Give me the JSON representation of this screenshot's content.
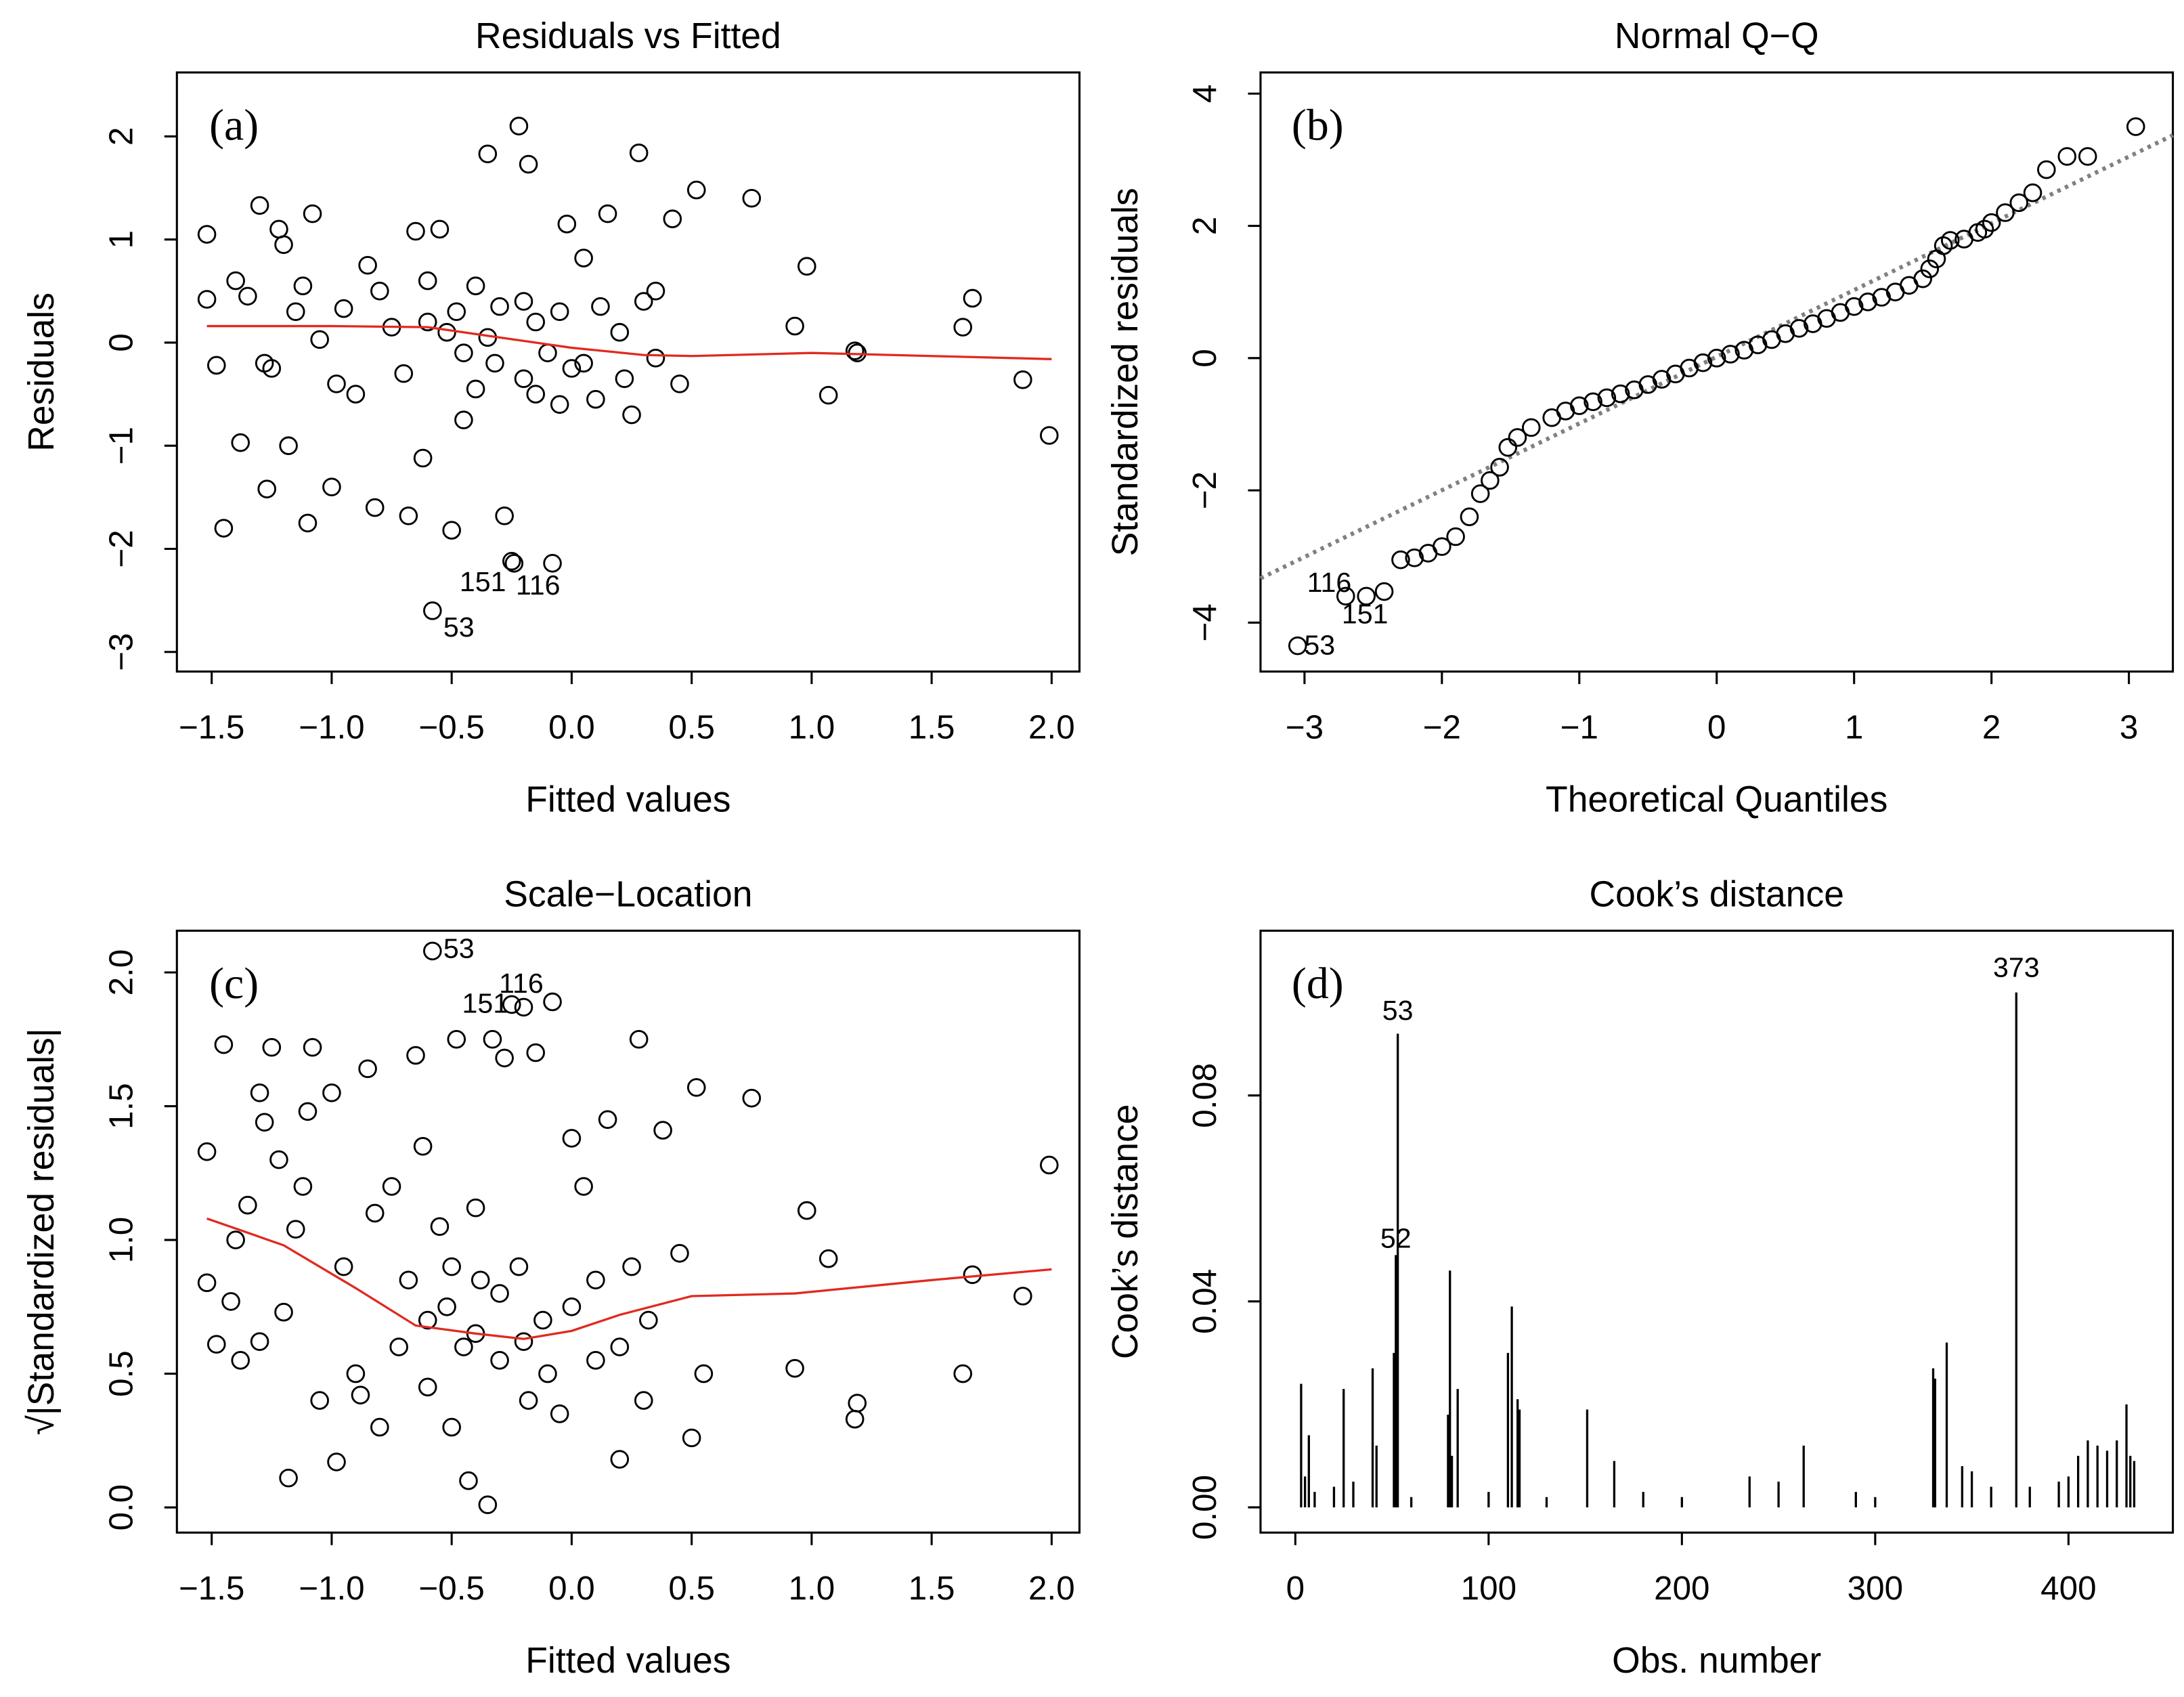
{
  "chart_data": [
    {
      "type": "scatter",
      "title": "Residuals vs Fitted",
      "panel_label": "(a)",
      "x_label": "Fitted values",
      "y_label": "Residuals",
      "xlim": [
        -1.645,
        2.116
      ],
      "ylim": [
        -3.19,
        2.62
      ],
      "xticks": [
        {
          "value": -1.5,
          "label": "−1.5"
        },
        {
          "value": -1,
          "label": "−1.0"
        },
        {
          "value": -0.5,
          "label": "−0.5"
        },
        {
          "value": 0,
          "label": "0.0"
        },
        0.5,
        {
          "value": 1,
          "label": "1.0"
        },
        1.5,
        {
          "value": 2,
          "label": "2.0"
        }
      ],
      "yticks": [
        {
          "value": -3,
          "label": "−3"
        },
        {
          "value": -2,
          "label": "−2"
        },
        {
          "value": -1,
          "label": "−1"
        },
        0,
        1,
        2
      ],
      "x": [
        -1.52,
        -1.52,
        -1.48,
        -1.45,
        -1.4,
        -1.38,
        -1.35,
        -1.3,
        -1.28,
        -1.27,
        -1.25,
        -1.22,
        -1.2,
        -1.18,
        -1.15,
        -1.12,
        -1.1,
        -1.08,
        -1.05,
        -1.0,
        -0.98,
        -0.95,
        -0.9,
        -0.85,
        -0.82,
        -0.8,
        -0.75,
        -0.7,
        -0.68,
        -0.65,
        -0.62,
        -0.6,
        -0.6,
        -0.58,
        -0.55,
        -0.52,
        -0.5,
        -0.48,
        -0.45,
        -0.45,
        -0.4,
        -0.4,
        -0.35,
        -0.35,
        -0.32,
        -0.3,
        -0.28,
        -0.25,
        -0.24,
        -0.22,
        -0.2,
        -0.2,
        -0.18,
        -0.15,
        -0.15,
        -0.1,
        -0.08,
        -0.05,
        -0.05,
        -0.02,
        0.0,
        0.05,
        0.05,
        0.1,
        0.12,
        0.15,
        0.2,
        0.22,
        0.25,
        0.28,
        0.3,
        0.35,
        0.35,
        0.42,
        0.45,
        0.52,
        0.75,
        0.93,
        0.98,
        1.07,
        1.18,
        1.19,
        1.63,
        1.67,
        1.88,
        1.99
      ],
      "values": [
        1.05,
        0.42,
        -0.22,
        -1.8,
        0.6,
        -0.97,
        0.45,
        1.33,
        -0.2,
        -1.42,
        -0.25,
        1.1,
        0.95,
        -1.0,
        0.3,
        0.55,
        -1.75,
        1.25,
        0.03,
        -1.4,
        -0.4,
        0.33,
        -0.5,
        0.75,
        -1.6,
        0.5,
        0.15,
        -0.3,
        -1.68,
        1.08,
        -1.12,
        0.6,
        0.2,
        -2.6,
        1.1,
        0.1,
        -1.82,
        0.3,
        -0.75,
        -0.1,
        0.55,
        -0.45,
        1.83,
        0.05,
        -0.2,
        0.35,
        -1.68,
        -2.12,
        -2.14,
        2.1,
        0.4,
        -0.35,
        1.73,
        -0.5,
        0.2,
        -0.1,
        -2.14,
        0.3,
        -0.6,
        1.15,
        -0.25,
        0.82,
        -0.2,
        -0.55,
        0.35,
        1.25,
        0.1,
        -0.35,
        -0.7,
        1.84,
        0.4,
        -0.15,
        0.5,
        1.2,
        -0.4,
        1.48,
        1.4,
        0.16,
        0.74,
        -0.51,
        -0.08,
        -0.1,
        0.15,
        0.43,
        -0.36,
        -0.9
      ],
      "color": "#000000",
      "smooth": {
        "x": [
          -1.52,
          -1.0,
          -0.6,
          -0.3,
          0.0,
          0.3,
          0.5,
          1.0,
          1.5,
          2.0
        ],
        "values": [
          0.16,
          0.16,
          0.15,
          0.05,
          -0.05,
          -0.12,
          -0.13,
          -0.1,
          -0.13,
          -0.16
        ],
        "color": "#e02a20"
      },
      "annotations": [
        {
          "text": "151",
          "x": -0.37,
          "y": -2.32
        },
        {
          "text": "116",
          "x": -0.14,
          "y": -2.35
        },
        {
          "text": "53",
          "x": -0.47,
          "y": -2.76
        }
      ]
    },
    {
      "type": "scatter",
      "title": "Normal Q−Q",
      "panel_label": "(b)",
      "x_label": "Theoretical Quantiles",
      "y_label": "Standardized residuals",
      "xlim": [
        -3.32,
        3.32
      ],
      "ylim": [
        -4.74,
        4.32
      ],
      "xticks": [
        {
          "value": -3,
          "label": "−3"
        },
        {
          "value": -2,
          "label": "−2"
        },
        {
          "value": -1,
          "label": "−1"
        },
        0,
        1,
        2,
        3
      ],
      "yticks": [
        {
          "value": -4,
          "label": "−4"
        },
        {
          "value": -2,
          "label": "−2"
        },
        0,
        2,
        4
      ],
      "x": [
        -3.05,
        -2.7,
        -2.55,
        -2.42,
        -2.3,
        -2.2,
        -2.1,
        -2.0,
        -1.9,
        -1.8,
        -1.72,
        -1.65,
        -1.58,
        -1.52,
        -1.45,
        -1.35,
        -1.2,
        -1.1,
        -1.0,
        -0.9,
        -0.8,
        -0.7,
        -0.6,
        -0.5,
        -0.4,
        -0.3,
        -0.2,
        -0.1,
        0.0,
        0.1,
        0.2,
        0.3,
        0.4,
        0.5,
        0.6,
        0.7,
        0.8,
        0.9,
        1.0,
        1.1,
        1.2,
        1.3,
        1.4,
        1.5,
        1.55,
        1.6,
        1.65,
        1.7,
        1.8,
        1.9,
        1.95,
        2.0,
        2.1,
        2.2,
        2.3,
        2.4,
        2.55,
        2.7,
        3.05
      ],
      "values": [
        -4.35,
        -3.6,
        -3.6,
        -3.53,
        -3.05,
        -3.02,
        -2.95,
        -2.85,
        -2.7,
        -2.4,
        -2.05,
        -1.85,
        -1.65,
        -1.35,
        -1.2,
        -1.05,
        -0.9,
        -0.8,
        -0.72,
        -0.66,
        -0.6,
        -0.54,
        -0.48,
        -0.4,
        -0.32,
        -0.24,
        -0.15,
        -0.07,
        0.0,
        0.06,
        0.12,
        0.2,
        0.28,
        0.37,
        0.45,
        0.52,
        0.6,
        0.69,
        0.78,
        0.85,
        0.92,
        1.0,
        1.1,
        1.2,
        1.35,
        1.5,
        1.7,
        1.78,
        1.8,
        1.9,
        1.95,
        2.05,
        2.2,
        2.35,
        2.5,
        2.85,
        3.05,
        3.05,
        3.5
      ],
      "color": "#000000",
      "reference_line": {
        "x": [
          -3.32,
          3.32
        ],
        "values": [
          -3.33,
          3.37
        ],
        "color": "#808080"
      },
      "annotations": [
        {
          "text": "116",
          "x": -2.82,
          "y": -3.39
        },
        {
          "text": "151",
          "x": -2.56,
          "y": -3.87
        },
        {
          "text": "53",
          "x": -2.89,
          "y": -4.34
        }
      ]
    },
    {
      "type": "scatter",
      "title": "Scale−Location",
      "panel_label": "(c)",
      "x_label": "Fitted values",
      "y_label": "√|Standardized residuals|",
      "xlim": [
        -1.645,
        2.116
      ],
      "ylim": [
        -0.094,
        2.156
      ],
      "xticks": [
        {
          "value": -1.5,
          "label": "−1.5"
        },
        {
          "value": -1,
          "label": "−1.0"
        },
        {
          "value": -0.5,
          "label": "−0.5"
        },
        {
          "value": 0,
          "label": "0.0"
        },
        0.5,
        {
          "value": 1,
          "label": "1.0"
        },
        1.5,
        {
          "value": 2,
          "label": "2.0"
        }
      ],
      "yticks": [
        {
          "value": 0,
          "label": "0.0"
        },
        0.5,
        {
          "value": 1,
          "label": "1.0"
        },
        1.5,
        {
          "value": 2,
          "label": "2.0"
        }
      ],
      "x": [
        -1.52,
        -1.52,
        -1.48,
        -1.45,
        -1.42,
        -1.4,
        -1.38,
        -1.35,
        -1.3,
        -1.3,
        -1.28,
        -1.25,
        -1.22,
        -1.2,
        -1.18,
        -1.15,
        -1.12,
        -1.1,
        -1.08,
        -1.05,
        -1.0,
        -0.98,
        -0.95,
        -0.9,
        -0.88,
        -0.85,
        -0.82,
        -0.8,
        -0.75,
        -0.72,
        -0.68,
        -0.65,
        -0.62,
        -0.6,
        -0.58,
        -0.55,
        -0.52,
        -0.5,
        -0.48,
        -0.45,
        -0.43,
        -0.4,
        -0.38,
        -0.35,
        -0.33,
        -0.3,
        -0.28,
        -0.25,
        -0.22,
        -0.2,
        -0.18,
        -0.15,
        -0.12,
        -0.08,
        -0.05,
        0.0,
        0.05,
        0.1,
        0.15,
        0.2,
        0.25,
        0.28,
        0.32,
        0.38,
        0.45,
        0.5,
        0.52,
        0.55,
        0.75,
        0.93,
        0.98,
        1.07,
        1.18,
        1.19,
        1.63,
        1.67,
        1.88,
        1.99,
        -0.4,
        -0.3,
        -0.2,
        -0.1,
        0.0,
        0.1,
        0.2,
        -0.5,
        0.3,
        -0.6
      ],
      "values": [
        1.33,
        0.84,
        0.61,
        1.73,
        0.77,
        1.0,
        0.55,
        1.13,
        1.55,
        0.62,
        1.44,
        1.72,
        1.3,
        0.73,
        0.11,
        1.04,
        1.2,
        1.48,
        1.72,
        0.4,
        1.55,
        0.17,
        0.9,
        0.5,
        0.42,
        1.64,
        1.1,
        0.3,
        1.2,
        0.6,
        0.85,
        1.69,
        1.35,
        0.45,
        2.08,
        1.05,
        0.75,
        0.3,
        1.75,
        0.6,
        0.1,
        1.12,
        0.85,
        0.01,
        1.75,
        0.55,
        1.68,
        1.88,
        0.9,
        1.87,
        0.4,
        1.7,
        0.7,
        1.89,
        0.35,
        1.38,
        1.2,
        0.55,
        1.45,
        0.18,
        0.9,
        1.75,
        0.7,
        1.41,
        0.95,
        0.26,
        1.57,
        0.5,
        1.53,
        0.52,
        1.11,
        0.93,
        0.33,
        0.39,
        0.5,
        0.87,
        0.79,
        1.28,
        0.65,
        0.8,
        0.62,
        0.5,
        0.75,
        0.85,
        0.6,
        0.9,
        0.4,
        0.7
      ],
      "color": "#000000",
      "smooth": {
        "x": [
          -1.52,
          -1.2,
          -0.9,
          -0.65,
          -0.4,
          -0.2,
          0.0,
          0.2,
          0.5,
          0.93,
          1.5,
          2.0
        ],
        "values": [
          1.08,
          0.98,
          0.82,
          0.68,
          0.65,
          0.63,
          0.66,
          0.72,
          0.79,
          0.8,
          0.85,
          0.89
        ],
        "color": "#e02a20"
      },
      "annotations": [
        {
          "text": "53",
          "x": -0.47,
          "y": 2.09
        },
        {
          "text": "116",
          "x": -0.21,
          "y": 1.96
        },
        {
          "text": "151",
          "x": -0.36,
          "y": 1.885
        }
      ]
    },
    {
      "type": "bar",
      "title": "Cook’s distance",
      "panel_label": "(d)",
      "x_label": "Obs. number",
      "y_label": "Cook’s distance",
      "xlim": [
        -18,
        454
      ],
      "ylim": [
        -0.0049,
        0.112
      ],
      "xticks": [
        0,
        100,
        200,
        300,
        400
      ],
      "yticks": [
        {
          "value": 0,
          "label": "0.00"
        },
        {
          "value": 0.04,
          "label": "0.04"
        },
        {
          "value": 0.08,
          "label": "0.08"
        }
      ],
      "x": [
        3,
        5,
        7,
        10,
        20,
        25,
        30,
        40,
        42,
        51,
        52,
        53,
        60,
        79,
        80,
        81,
        84,
        100,
        110,
        112,
        115,
        116,
        130,
        151,
        165,
        180,
        200,
        235,
        250,
        263,
        290,
        300,
        330,
        331,
        337,
        345,
        350,
        360,
        373,
        380,
        395,
        400,
        405,
        410,
        415,
        420,
        425,
        430,
        432,
        434
      ],
      "values": [
        0.024,
        0.006,
        0.014,
        0.003,
        0.004,
        0.023,
        0.005,
        0.027,
        0.012,
        0.03,
        0.049,
        0.092,
        0.002,
        0.018,
        0.046,
        0.01,
        0.023,
        0.003,
        0.03,
        0.039,
        0.021,
        0.019,
        0.002,
        0.019,
        0.009,
        0.003,
        0.002,
        0.006,
        0.005,
        0.012,
        0.003,
        0.002,
        0.027,
        0.025,
        0.032,
        0.008,
        0.007,
        0.004,
        0.1,
        0.004,
        0.005,
        0.006,
        0.01,
        0.013,
        0.012,
        0.011,
        0.013,
        0.02,
        0.01,
        0.009
      ],
      "color": "#000000",
      "annotations": [
        {
          "text": "53",
          "x": 53,
          "y": 0.0965
        },
        {
          "text": "52",
          "x": 52,
          "y": 0.0523
        },
        {
          "text": "373",
          "x": 373,
          "y": 0.1049
        }
      ]
    }
  ]
}
